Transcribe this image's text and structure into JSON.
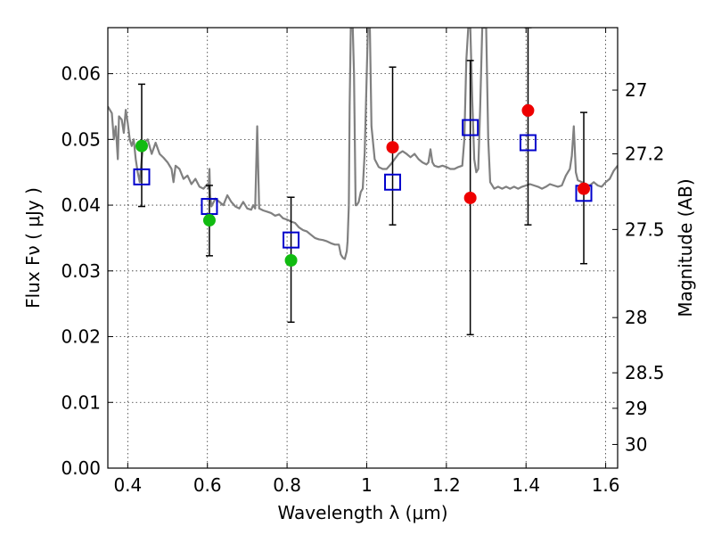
{
  "chart_data": {
    "type": "scatter",
    "xlabel": "Wavelength  λ (μm)",
    "ylabel": "Flux  Fν  ( μJy )",
    "ylabel_right": "Magnitude (AB)",
    "xlim": [
      0.35,
      1.63
    ],
    "ylim": [
      0.0,
      0.067
    ],
    "x_ticks": [
      0.4,
      0.6,
      0.8,
      1.0,
      1.2,
      1.4,
      1.6
    ],
    "x_tick_labels": [
      "0.4",
      "0.6",
      "0.8",
      "1",
      "1.2",
      "1.4",
      "1.6"
    ],
    "y_ticks": [
      0.0,
      0.01,
      0.02,
      0.03,
      0.04,
      0.05,
      0.06
    ],
    "y_tick_labels": [
      "0.00",
      "0.01",
      "0.02",
      "0.03",
      "0.04",
      "0.05",
      "0.06"
    ],
    "right_ticks": [
      {
        "label": "27",
        "flux": 0.0575
      },
      {
        "label": "27.2",
        "flux": 0.0478
      },
      {
        "label": "27.5",
        "flux": 0.0363
      },
      {
        "label": "28",
        "flux": 0.0229
      },
      {
        "label": "28.5",
        "flux": 0.0145
      },
      {
        "label": "29",
        "flux": 0.0091
      },
      {
        "label": "30",
        "flux": 0.0036
      }
    ],
    "grid": true,
    "series": [
      {
        "name": "model spectrum",
        "kind": "line",
        "color": "#808080",
        "points": [
          [
            0.35,
            0.055
          ],
          [
            0.36,
            0.054
          ],
          [
            0.365,
            0.05
          ],
          [
            0.37,
            0.052
          ],
          [
            0.375,
            0.047
          ],
          [
            0.378,
            0.0535
          ],
          [
            0.385,
            0.053
          ],
          [
            0.39,
            0.051
          ],
          [
            0.395,
            0.0545
          ],
          [
            0.4,
            0.0525
          ],
          [
            0.405,
            0.05
          ],
          [
            0.41,
            0.049
          ],
          [
            0.415,
            0.05
          ],
          [
            0.42,
            0.047
          ],
          [
            0.425,
            0.045
          ],
          [
            0.43,
            0.0435
          ],
          [
            0.435,
            0.047
          ],
          [
            0.44,
            0.0495
          ],
          [
            0.45,
            0.05
          ],
          [
            0.46,
            0.0478
          ],
          [
            0.47,
            0.0495
          ],
          [
            0.48,
            0.0478
          ],
          [
            0.49,
            0.0472
          ],
          [
            0.5,
            0.0465
          ],
          [
            0.51,
            0.0455
          ],
          [
            0.515,
            0.0435
          ],
          [
            0.52,
            0.046
          ],
          [
            0.53,
            0.0455
          ],
          [
            0.54,
            0.044
          ],
          [
            0.55,
            0.0445
          ],
          [
            0.56,
            0.0432
          ],
          [
            0.57,
            0.044
          ],
          [
            0.58,
            0.0428
          ],
          [
            0.59,
            0.0425
          ],
          [
            0.6,
            0.0432
          ],
          [
            0.603,
            0.0425
          ],
          [
            0.605,
            0.0455
          ],
          [
            0.607,
            0.0415
          ],
          [
            0.61,
            0.0398
          ],
          [
            0.62,
            0.041
          ],
          [
            0.63,
            0.0405
          ],
          [
            0.64,
            0.04
          ],
          [
            0.65,
            0.0415
          ],
          [
            0.66,
            0.0405
          ],
          [
            0.67,
            0.0398
          ],
          [
            0.68,
            0.0395
          ],
          [
            0.69,
            0.0405
          ],
          [
            0.7,
            0.0395
          ],
          [
            0.71,
            0.0393
          ],
          [
            0.715,
            0.04
          ],
          [
            0.72,
            0.0395
          ],
          [
            0.725,
            0.052
          ],
          [
            0.73,
            0.0395
          ],
          [
            0.74,
            0.0392
          ],
          [
            0.75,
            0.039
          ],
          [
            0.76,
            0.0388
          ],
          [
            0.77,
            0.0384
          ],
          [
            0.78,
            0.0386
          ],
          [
            0.79,
            0.038
          ],
          [
            0.8,
            0.0378
          ],
          [
            0.81,
            0.0375
          ],
          [
            0.82,
            0.0373
          ],
          [
            0.83,
            0.0366
          ],
          [
            0.84,
            0.0362
          ],
          [
            0.85,
            0.036
          ],
          [
            0.86,
            0.0355
          ],
          [
            0.87,
            0.035
          ],
          [
            0.88,
            0.0348
          ],
          [
            0.89,
            0.0347
          ],
          [
            0.9,
            0.0345
          ],
          [
            0.91,
            0.0342
          ],
          [
            0.92,
            0.034
          ],
          [
            0.93,
            0.034
          ],
          [
            0.935,
            0.0325
          ],
          [
            0.94,
            0.032
          ],
          [
            0.945,
            0.0318
          ],
          [
            0.95,
            0.033
          ],
          [
            0.952,
            0.0345
          ],
          [
            0.955,
            0.04
          ],
          [
            0.957,
            0.055
          ],
          [
            0.96,
            0.067
          ],
          [
            0.965,
            0.067
          ],
          [
            0.968,
            0.06
          ],
          [
            0.972,
            0.04
          ],
          [
            0.975,
            0.04
          ],
          [
            0.98,
            0.0405
          ],
          [
            0.985,
            0.042
          ],
          [
            0.99,
            0.0425
          ],
          [
            0.995,
            0.048
          ],
          [
            1.0,
            0.06
          ],
          [
            1.003,
            0.067
          ],
          [
            1.008,
            0.067
          ],
          [
            1.012,
            0.052
          ],
          [
            1.02,
            0.047
          ],
          [
            1.03,
            0.0458
          ],
          [
            1.04,
            0.0455
          ],
          [
            1.05,
            0.0455
          ],
          [
            1.06,
            0.0462
          ],
          [
            1.07,
            0.047
          ],
          [
            1.08,
            0.0478
          ],
          [
            1.09,
            0.0482
          ],
          [
            1.1,
            0.0478
          ],
          [
            1.11,
            0.0473
          ],
          [
            1.12,
            0.0478
          ],
          [
            1.13,
            0.047
          ],
          [
            1.14,
            0.0465
          ],
          [
            1.15,
            0.0462
          ],
          [
            1.155,
            0.0465
          ],
          [
            1.16,
            0.0485
          ],
          [
            1.165,
            0.0465
          ],
          [
            1.17,
            0.046
          ],
          [
            1.18,
            0.0458
          ],
          [
            1.19,
            0.046
          ],
          [
            1.2,
            0.0458
          ],
          [
            1.21,
            0.0455
          ],
          [
            1.22,
            0.0455
          ],
          [
            1.23,
            0.0458
          ],
          [
            1.24,
            0.046
          ],
          [
            1.245,
            0.05
          ],
          [
            1.25,
            0.062
          ],
          [
            1.255,
            0.067
          ],
          [
            1.26,
            0.067
          ],
          [
            1.265,
            0.056
          ],
          [
            1.27,
            0.047
          ],
          [
            1.275,
            0.045
          ],
          [
            1.28,
            0.0455
          ],
          [
            1.285,
            0.055
          ],
          [
            1.29,
            0.067
          ],
          [
            1.3,
            0.067
          ],
          [
            1.305,
            0.05
          ],
          [
            1.31,
            0.0435
          ],
          [
            1.32,
            0.0425
          ],
          [
            1.33,
            0.0428
          ],
          [
            1.34,
            0.0425
          ],
          [
            1.35,
            0.0428
          ],
          [
            1.36,
            0.0425
          ],
          [
            1.37,
            0.0428
          ],
          [
            1.38,
            0.0425
          ],
          [
            1.39,
            0.0428
          ],
          [
            1.4,
            0.043
          ],
          [
            1.41,
            0.0432
          ],
          [
            1.42,
            0.043
          ],
          [
            1.43,
            0.0428
          ],
          [
            1.44,
            0.0425
          ],
          [
            1.45,
            0.0428
          ],
          [
            1.46,
            0.0432
          ],
          [
            1.47,
            0.043
          ],
          [
            1.48,
            0.0428
          ],
          [
            1.49,
            0.043
          ],
          [
            1.5,
            0.0445
          ],
          [
            1.51,
            0.0455
          ],
          [
            1.515,
            0.0475
          ],
          [
            1.52,
            0.052
          ],
          [
            1.525,
            0.045
          ],
          [
            1.53,
            0.0438
          ],
          [
            1.54,
            0.0435
          ],
          [
            1.55,
            0.0432
          ],
          [
            1.56,
            0.043
          ],
          [
            1.57,
            0.0435
          ],
          [
            1.58,
            0.043
          ],
          [
            1.59,
            0.0428
          ],
          [
            1.6,
            0.0435
          ],
          [
            1.61,
            0.044
          ],
          [
            1.62,
            0.0452
          ],
          [
            1.63,
            0.046
          ]
        ]
      },
      {
        "name": "model bandpass flux",
        "kind": "marker",
        "marker": "open-square",
        "color": "#0000cc",
        "x": [
          0.435,
          0.605,
          0.81,
          1.065,
          1.26,
          1.405,
          1.545
        ],
        "values": [
          0.0443,
          0.0398,
          0.0347,
          0.0435,
          0.0518,
          0.0495,
          0.0418
        ]
      },
      {
        "name": "observed (green)",
        "kind": "marker",
        "marker": "filled-circle",
        "color": "#11bb11",
        "x": [
          0.435,
          0.605,
          0.81
        ],
        "values": [
          0.049,
          0.0377,
          0.0316
        ],
        "err_low": [
          0.0398,
          0.0323,
          0.0222
        ],
        "err_high": [
          0.0584,
          0.043,
          0.0412
        ]
      },
      {
        "name": "observed (red)",
        "kind": "marker",
        "marker": "filled-circle",
        "color": "#ee0000",
        "x": [
          1.065,
          1.26,
          1.405,
          1.545
        ],
        "values": [
          0.0488,
          0.0411,
          0.0544,
          0.0425
        ],
        "err_low": [
          0.037,
          0.0203,
          0.037,
          0.0311
        ],
        "err_high": [
          0.061,
          0.062,
          0.067,
          0.0541
        ]
      }
    ]
  }
}
